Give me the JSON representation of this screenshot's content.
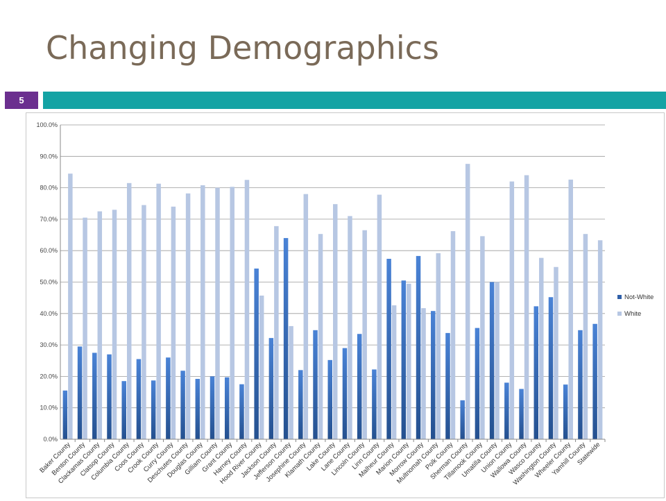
{
  "slide": {
    "title": "Changing Demographics",
    "page_number": "5",
    "colors": {
      "title": "#7a6a58",
      "badge": "#6b2f8f",
      "accent_bar": "#14a3a4"
    }
  },
  "chart_data": {
    "type": "bar",
    "categories": [
      "Baker County",
      "Benton County",
      "Clackamas County",
      "Clatsop County",
      "Columbia County",
      "Coos County",
      "Crook County",
      "Curry County",
      "Deschutes County",
      "Douglas County",
      "Gilliam County",
      "Grant County",
      "Harney County",
      "Hood River County",
      "Jackson County",
      "Jefferson County",
      "Josephine County",
      "Klamath County",
      "Lake County",
      "Lane County",
      "Lincoln County",
      "Linn County",
      "Malheur County",
      "Marion County",
      "Morrow County",
      "Multnomah County",
      "Polk County",
      "Sherman County",
      "Tillamook County",
      "Umatilla County",
      "Union County",
      "Wallowa County",
      "Wasco County",
      "Washington County",
      "Wheeler County",
      "Yamhill County",
      "Statewide"
    ],
    "series": [
      {
        "name": "Not-White",
        "color": "#3b6fc2",
        "values": [
          15.5,
          29.5,
          27.5,
          27.0,
          18.5,
          25.5,
          18.7,
          26.0,
          21.8,
          19.2,
          20.0,
          19.7,
          17.5,
          54.3,
          32.2,
          64.0,
          22.0,
          34.7,
          25.2,
          29.0,
          33.5,
          22.2,
          57.4,
          50.5,
          58.3,
          40.8,
          33.8,
          12.4,
          35.4,
          50.0,
          18.0,
          16.0,
          42.3,
          45.2,
          17.4,
          34.7,
          36.7
        ]
      },
      {
        "name": "White",
        "color": "#b7c7e3",
        "values": [
          84.5,
          70.5,
          72.5,
          73.0,
          81.5,
          74.5,
          81.3,
          74.0,
          78.2,
          80.8,
          80.0,
          80.3,
          82.5,
          45.7,
          67.8,
          36.0,
          78.0,
          65.3,
          74.8,
          71.0,
          66.5,
          77.8,
          42.6,
          49.5,
          41.7,
          59.2,
          66.2,
          87.6,
          64.6,
          50.0,
          82.0,
          84.0,
          57.7,
          54.8,
          82.6,
          65.3,
          63.3
        ]
      }
    ],
    "y_ticks": [
      "0.0%",
      "10.0%",
      "20.0%",
      "30.0%",
      "40.0%",
      "50.0%",
      "60.0%",
      "70.0%",
      "80.0%",
      "90.0%",
      "100.0%"
    ],
    "ylim": [
      0,
      100
    ],
    "grid": true,
    "legend_position": "right"
  }
}
